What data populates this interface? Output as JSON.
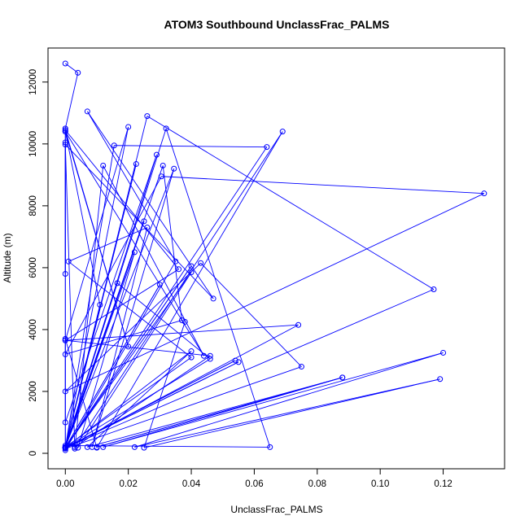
{
  "chart_data": {
    "type": "line",
    "title": "ATOM3 Southbound UnclassFrac_PALMS",
    "xlabel": "UnclassFrac_PALMS",
    "ylabel": "Altitude (m)",
    "xlim": [
      -0.0055,
      0.1395
    ],
    "ylim": [
      -500,
      13100
    ],
    "xticks": [
      0,
      0.02,
      0.04,
      0.06,
      0.08,
      0.1,
      0.12
    ],
    "xtick_labels": [
      "0.00",
      "0.02",
      "0.04",
      "0.06",
      "0.08",
      "0.10",
      "0.12"
    ],
    "yticks": [
      0,
      2000,
      4000,
      6000,
      8000,
      10000,
      12000
    ],
    "ytick_labels": [
      "0",
      "2000",
      "4000",
      "6000",
      "8000",
      "10000",
      "12000"
    ],
    "grid": false,
    "series": [
      {
        "color": "#0000ff",
        "marker": "open-circle",
        "points": [
          [
            0.0,
            12600
          ],
          [
            0.004,
            12300
          ],
          [
            0.0,
            10500
          ],
          [
            0.0,
            100
          ],
          [
            0.035,
            6200
          ],
          [
            0.007,
            11050
          ],
          [
            0.047,
            5000
          ],
          [
            0.0,
            9980
          ],
          [
            0.003,
            150
          ],
          [
            0.012,
            9300
          ],
          [
            0.044,
            3150
          ],
          [
            0.0,
            10400
          ],
          [
            0.011,
            4800
          ],
          [
            0.0,
            200
          ],
          [
            0.0,
            10050
          ],
          [
            0.0,
            5800
          ],
          [
            0.0,
            10400
          ],
          [
            0.02,
            3450
          ],
          [
            0.0,
            10450
          ],
          [
            0.036,
            5950
          ],
          [
            0.0,
            3650
          ],
          [
            0.02,
            10550
          ],
          [
            0.0,
            180
          ],
          [
            0.0165,
            5500
          ],
          [
            0.046,
            3050
          ],
          [
            0.0,
            180
          ],
          [
            0.026,
            10900
          ],
          [
            0.117,
            5300
          ],
          [
            0.0,
            180
          ],
          [
            0.0155,
            9950
          ],
          [
            0.064,
            9900
          ],
          [
            0.0,
            180
          ],
          [
            0.0225,
            9350
          ],
          [
            0.0,
            180
          ],
          [
            0.032,
            10500
          ],
          [
            0.065,
            200
          ],
          [
            0.0,
            250
          ],
          [
            0.031,
            9300
          ],
          [
            0.037,
            4300
          ],
          [
            0.0,
            3200
          ],
          [
            0.0305,
            8950
          ],
          [
            0.133,
            8400
          ],
          [
            0.0,
            2000
          ],
          [
            0.043,
            6150
          ],
          [
            0.075,
            2800
          ],
          [
            0.0,
            150
          ],
          [
            0.074,
            4150
          ],
          [
            0.0,
            3650
          ],
          [
            0.046,
            3150
          ],
          [
            0.003,
            200
          ],
          [
            0.069,
            10400
          ],
          [
            0.01,
            180
          ],
          [
            0.0,
            3700
          ],
          [
            0.0,
            1000
          ],
          [
            0.029,
            9650
          ],
          [
            0.0,
            200
          ],
          [
            0.04,
            3100
          ],
          [
            0.001,
            6200
          ],
          [
            0.026,
            7300
          ],
          [
            0.0085,
            200
          ],
          [
            0.0345,
            9200
          ],
          [
            0.0,
            200
          ],
          [
            0.025,
            7500
          ],
          [
            0.0,
            180
          ],
          [
            0.03,
            5450
          ],
          [
            0.0,
            180
          ],
          [
            0.022,
            6500
          ],
          [
            0.004,
            180
          ],
          [
            0.04,
            5850
          ],
          [
            0.0,
            180
          ],
          [
            0.04,
            6050
          ],
          [
            0.0,
            180
          ],
          [
            0.055,
            2950
          ],
          [
            0.0,
            180
          ],
          [
            0.054,
            3000
          ],
          [
            0.0,
            180
          ],
          [
            0.04,
            3300
          ],
          [
            0.007,
            200
          ],
          [
            0.088,
            2450
          ],
          [
            0.01,
            200
          ],
          [
            0.088,
            2450
          ],
          [
            0.012,
            200
          ],
          [
            0.12,
            3250
          ],
          [
            0.022,
            200
          ],
          [
            0.119,
            2400
          ],
          [
            0.025,
            180
          ],
          [
            0.038,
            4250
          ]
        ]
      }
    ]
  }
}
